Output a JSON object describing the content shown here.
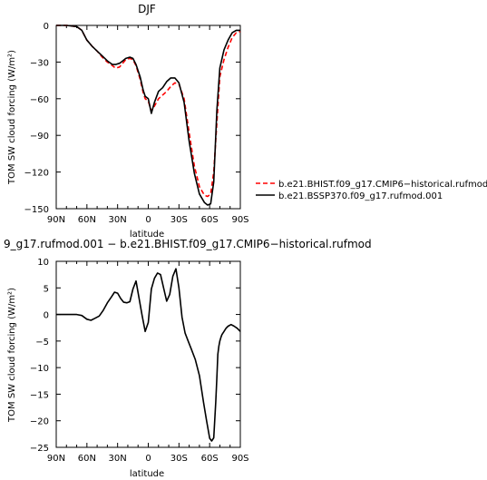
{
  "chart_data": [
    {
      "type": "line",
      "title": "DJF",
      "xlabel": "latitude",
      "ylabel": "TOM SW cloud forcing (W/m²)",
      "x_unit": "degrees latitude (90 = 90N, -90 = 90S)",
      "xlim": [
        90,
        -90
      ],
      "ylim": [
        -150,
        0
      ],
      "x_ticks": [
        90,
        60,
        30,
        0,
        -30,
        -60,
        -90
      ],
      "x_tick_labels": [
        "90N",
        "60N",
        "30N",
        "0",
        "30S",
        "60S",
        "90S"
      ],
      "y_ticks": [
        0,
        -30,
        -60,
        -90,
        -120,
        -150
      ],
      "y_tick_labels": [
        "0",
        "−30",
        "−60",
        "−90",
        "−120",
        "−150"
      ],
      "legend": "outside right, bottom",
      "series": [
        {
          "name": "b.e21.BHIST.f09_g17.CMIP6−historical.rufmod",
          "color": "#ff0000",
          "style": "dashed",
          "x": [
            90,
            80,
            70,
            65,
            60,
            55,
            50,
            45,
            40,
            35,
            32,
            28,
            25,
            22,
            18,
            15,
            12,
            8,
            5,
            3,
            0,
            -3,
            -6,
            -10,
            -14,
            -18,
            -22,
            -26,
            -30,
            -35,
            -40,
            -45,
            -50,
            -55,
            -58,
            -61,
            -64,
            -67,
            -70,
            -74,
            -78,
            -82,
            -86,
            -90
          ],
          "y": [
            0,
            0,
            -1,
            -4,
            -12,
            -17,
            -21,
            -26,
            -30,
            -33,
            -35,
            -34,
            -31,
            -28,
            -27,
            -28,
            -33,
            -44,
            -55,
            -60,
            -62,
            -70,
            -66,
            -60,
            -57,
            -54,
            -50,
            -47,
            -48,
            -60,
            -88,
            -115,
            -132,
            -139,
            -140,
            -138,
            -120,
            -80,
            -42,
            -28,
            -18,
            -10,
            -6,
            -5
          ]
        },
        {
          "name": "b.e21.BSSP370.f09_g17.rufmod.001",
          "color": "#000000",
          "style": "solid",
          "x": [
            90,
            80,
            70,
            65,
            60,
            55,
            50,
            45,
            40,
            35,
            32,
            28,
            25,
            22,
            18,
            15,
            12,
            8,
            5,
            3,
            0,
            -3,
            -6,
            -10,
            -14,
            -18,
            -22,
            -26,
            -30,
            -35,
            -40,
            -45,
            -50,
            -55,
            -58,
            -61,
            -64,
            -67,
            -70,
            -74,
            -78,
            -82,
            -86,
            -90
          ],
          "y": [
            0,
            0,
            -1,
            -4,
            -12,
            -17,
            -21,
            -25,
            -29,
            -32,
            -32,
            -31,
            -29,
            -27,
            -26,
            -27,
            -32,
            -42,
            -53,
            -58,
            -60,
            -72,
            -63,
            -54,
            -51,
            -46,
            -43,
            -43,
            -47,
            -63,
            -95,
            -121,
            -138,
            -145,
            -147,
            -146,
            -128,
            -70,
            -35,
            -20,
            -12,
            -6,
            -4,
            -4
          ]
        }
      ]
    },
    {
      "type": "line",
      "title": "9_g17.rufmod.001 − b.e21.BHIST.f09_g17.CMIP6−historical.rufmod",
      "xlabel": "latitude",
      "ylabel": "TOM SW cloud forcing (W/m²)",
      "x_unit": "degrees latitude (90 = 90N, -90 = 90S)",
      "xlim": [
        90,
        -90
      ],
      "ylim": [
        -25,
        10
      ],
      "x_ticks": [
        90,
        60,
        30,
        0,
        -30,
        -60,
        -90
      ],
      "x_tick_labels": [
        "90N",
        "60N",
        "30N",
        "0",
        "30S",
        "60S",
        "90S"
      ],
      "y_ticks": [
        10,
        5,
        0,
        -5,
        -10,
        -15,
        -20,
        -25
      ],
      "y_tick_labels": [
        "10",
        "5",
        "0",
        "−5",
        "−10",
        "−15",
        "−20",
        "−25"
      ],
      "series": [
        {
          "color": "#000000",
          "style": "solid",
          "x": [
            90,
            80,
            70,
            65,
            60,
            56,
            52,
            48,
            44,
            40,
            36,
            33,
            30,
            27,
            24,
            21,
            18,
            15,
            12,
            9,
            6,
            3,
            0,
            -3,
            -6,
            -9,
            -12,
            -15,
            -18,
            -21,
            -24,
            -27,
            -30,
            -33,
            -36,
            -39,
            -42,
            -46,
            -50,
            -54,
            -57,
            -60,
            -62,
            -64,
            -66,
            -67,
            -68,
            -69,
            -70,
            -71,
            -72,
            -74,
            -76,
            -78,
            -81,
            -84,
            -87,
            -90
          ],
          "y": [
            0,
            0,
            0,
            -0.2,
            -0.9,
            -1.1,
            -0.7,
            -0.3,
            0.8,
            2.2,
            3.3,
            4.2,
            4.0,
            3.0,
            2.3,
            2.2,
            2.4,
            4.8,
            6.3,
            3.0,
            -0.2,
            -3.2,
            -1.5,
            4.8,
            6.8,
            7.8,
            7.5,
            5.0,
            2.5,
            3.8,
            7.2,
            8.6,
            5.0,
            -0.5,
            -3.5,
            -5.0,
            -6.5,
            -8.5,
            -11.5,
            -16.5,
            -20.0,
            -23.3,
            -23.8,
            -23.2,
            -16.5,
            -12.0,
            -7.5,
            -6.0,
            -5.0,
            -4.3,
            -3.8,
            -3.2,
            -2.6,
            -2.2,
            -1.9,
            -2.2,
            -2.6,
            -3.2
          ]
        }
      ]
    }
  ]
}
